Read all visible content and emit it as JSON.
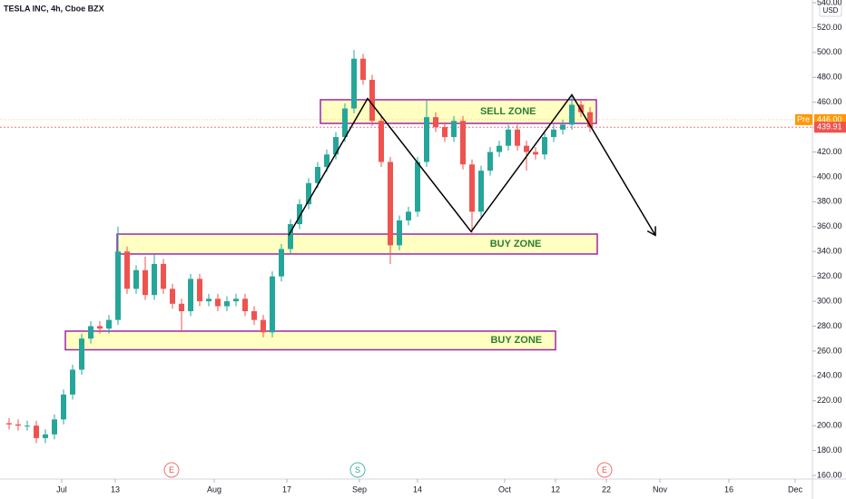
{
  "chart_data": {
    "type": "candlestick",
    "title": "TESLA INC, 4h, Cboe BZX",
    "currency": "USD",
    "xlim": [
      0,
      89.5
    ],
    "xticks": [
      {
        "value": 6.8,
        "label": "Jul"
      },
      {
        "value": 12.7,
        "label": "13"
      },
      {
        "value": 23.6,
        "label": "Aug"
      },
      {
        "value": 31.6,
        "label": "17"
      },
      {
        "value": 39.6,
        "label": "Sep"
      },
      {
        "value": 46.0,
        "label": "14"
      },
      {
        "value": 55.6,
        "label": "Oct"
      },
      {
        "value": 61.2,
        "label": "12"
      },
      {
        "value": 66.8,
        "label": "22"
      },
      {
        "value": 72.7,
        "label": "Nov"
      },
      {
        "value": 80.3,
        "label": "16"
      },
      {
        "value": 87.6,
        "label": "Dec"
      }
    ],
    "ylim": [
      160,
      540
    ],
    "yticks": [
      {
        "value": 160,
        "label": "160.00"
      },
      {
        "value": 180,
        "label": "180.00"
      },
      {
        "value": 200,
        "label": "200.00"
      },
      {
        "value": 220,
        "label": "220.00"
      },
      {
        "value": 240,
        "label": "240.00"
      },
      {
        "value": 260,
        "label": "260.00"
      },
      {
        "value": 280,
        "label": "280.00"
      },
      {
        "value": 300,
        "label": "300.00"
      },
      {
        "value": 320,
        "label": "320.00"
      },
      {
        "value": 340,
        "label": "340.00"
      },
      {
        "value": 360,
        "label": "360.00"
      },
      {
        "value": 380,
        "label": "380.00"
      },
      {
        "value": 400,
        "label": "400.00"
      },
      {
        "value": 420,
        "label": "420.00"
      },
      {
        "value": 440,
        "label": "440.00"
      },
      {
        "value": 460,
        "label": "460.00"
      },
      {
        "value": 480,
        "label": "480.00"
      },
      {
        "value": 500,
        "label": "500.00"
      },
      {
        "value": 520,
        "label": "520.00"
      },
      {
        "value": 540,
        "label": "540.00"
      }
    ],
    "up_color": "#26a69a",
    "down_color": "#ef5350",
    "candles": {
      "x": [
        1,
        2,
        3,
        4,
        5,
        6,
        7,
        8,
        9,
        10,
        11,
        12,
        13,
        14,
        15,
        16,
        17,
        18,
        19,
        20,
        21,
        22,
        23,
        24,
        25,
        26,
        27,
        28,
        29,
        30,
        31,
        32,
        33,
        34,
        35,
        36,
        37,
        38,
        39,
        40,
        41,
        42,
        43,
        44,
        45,
        46,
        47,
        48,
        49,
        50,
        51,
        52,
        53,
        54,
        55,
        56,
        57,
        58,
        59,
        60,
        61,
        62,
        63,
        64,
        65
      ],
      "open": [
        202,
        201,
        200,
        200,
        190,
        193,
        205,
        225,
        245,
        270,
        280,
        278,
        285,
        340,
        310,
        325,
        305,
        330,
        310,
        298,
        292,
        318,
        300,
        302,
        296,
        300,
        302,
        292,
        285,
        275,
        320,
        342,
        362,
        378,
        395,
        408,
        418,
        432,
        455,
        495,
        478,
        445,
        412,
        345,
        365,
        372,
        412,
        448,
        440,
        432,
        445,
        410,
        372,
        405,
        420,
        425,
        438,
        425,
        420,
        418,
        432,
        438,
        442,
        458,
        452
      ],
      "high": [
        206,
        205,
        204,
        204,
        197,
        209,
        229,
        249,
        274,
        284,
        284,
        289,
        360,
        344,
        329,
        336,
        338,
        334,
        314,
        302,
        322,
        322,
        306,
        306,
        304,
        306,
        306,
        296,
        289,
        324,
        346,
        366,
        382,
        399,
        412,
        422,
        436,
        459,
        502,
        499,
        482,
        449,
        416,
        369,
        376,
        416,
        462,
        452,
        444,
        449,
        449,
        414,
        409,
        424,
        429,
        442,
        442,
        429,
        424,
        436,
        442,
        446,
        465,
        462,
        456
      ],
      "low": [
        197,
        196,
        196,
        186,
        186,
        189,
        201,
        221,
        241,
        266,
        274,
        274,
        281,
        306,
        306,
        301,
        301,
        306,
        294,
        276,
        288,
        296,
        296,
        292,
        292,
        296,
        288,
        281,
        271,
        271,
        316,
        338,
        358,
        374,
        391,
        404,
        414,
        428,
        451,
        474,
        441,
        408,
        330,
        341,
        361,
        368,
        408,
        436,
        428,
        428,
        406,
        355,
        368,
        401,
        416,
        421,
        421,
        405,
        414,
        414,
        428,
        434,
        438,
        448,
        436
      ],
      "close": [
        201,
        200,
        200,
        190,
        193,
        205,
        225,
        245,
        270,
        280,
        278,
        285,
        340,
        310,
        325,
        305,
        330,
        310,
        298,
        292,
        318,
        300,
        302,
        296,
        300,
        302,
        292,
        285,
        275,
        320,
        342,
        362,
        378,
        395,
        408,
        418,
        432,
        455,
        495,
        478,
        445,
        412,
        345,
        365,
        372,
        412,
        448,
        440,
        432,
        445,
        410,
        372,
        405,
        420,
        425,
        438,
        425,
        420,
        418,
        432,
        438,
        442,
        458,
        452,
        440
      ]
    },
    "zones": [
      {
        "label": "SELL ZONE",
        "x": [
          35.3,
          65.7
        ],
        "y": [
          443,
          462
        ]
      },
      {
        "label": "BUY ZONE",
        "x": [
          12.9,
          65.8
        ],
        "y": [
          338,
          354
        ]
      },
      {
        "label": "BUY ZONE",
        "x": [
          7.2,
          61.2
        ],
        "y": [
          261,
          276
        ]
      }
    ],
    "zone_color": "#9c27b0",
    "zone_fill": "#ffffc2",
    "zone_text_color": "#2e7d32",
    "pattern": {
      "x": [
        31.8,
        40.5,
        51.9,
        63,
        72.2
      ],
      "y": [
        353,
        463,
        356,
        466,
        353
      ],
      "color": "#000000"
    },
    "price_lines": [
      {
        "name": "Pre",
        "value": 446,
        "value_label": "446.00",
        "color": "#ff9800"
      },
      {
        "value": 439.91,
        "color": "#ef5350"
      }
    ],
    "events": [
      {
        "label": "E",
        "x": 18.9,
        "color": "#ef5350"
      },
      {
        "label": "S",
        "x": 39.4,
        "color": "#26a69a"
      },
      {
        "label": "E",
        "x": 66.6,
        "color": "#ef5350"
      }
    ]
  }
}
